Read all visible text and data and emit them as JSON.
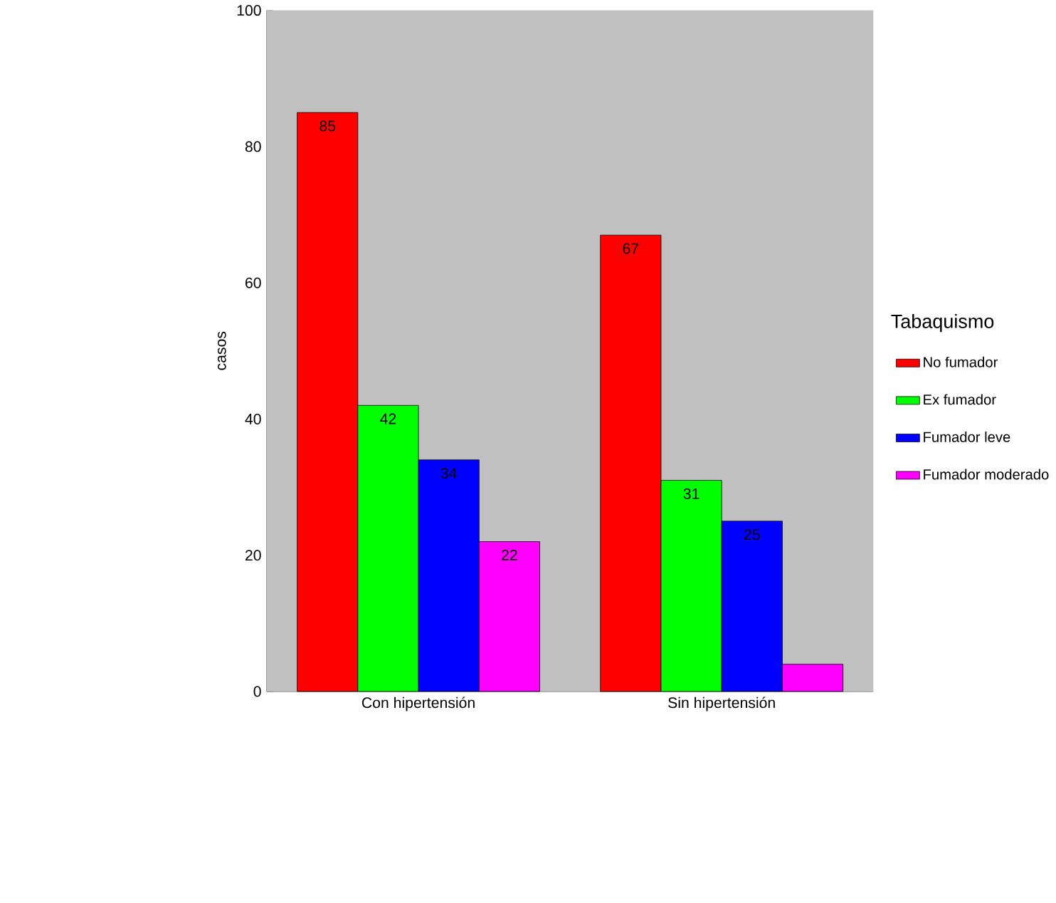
{
  "chart_data": {
    "type": "bar",
    "ylabel": "casos",
    "legend_title": "Tabaquismo",
    "categories": [
      "Con hipertensión",
      "Sin hipertensión"
    ],
    "series": [
      {
        "name": "No fumador",
        "color": "#ff0000",
        "values": [
          85,
          67
        ],
        "value_labels": [
          "85",
          "67"
        ]
      },
      {
        "name": "Ex fumador",
        "color": "#00ff00",
        "values": [
          42,
          31
        ],
        "value_labels": [
          "42",
          "31"
        ]
      },
      {
        "name": "Fumador leve",
        "color": "#0000ff",
        "values": [
          34,
          25
        ],
        "value_labels": [
          "34",
          "25"
        ]
      },
      {
        "name": "Fumador moderado",
        "color": "#ff00ff",
        "values": [
          22,
          4
        ],
        "value_labels": [
          "22",
          null
        ]
      }
    ],
    "ylim": [
      0,
      100
    ],
    "yticks": [
      0,
      20,
      40,
      60,
      80,
      100
    ],
    "grid": false,
    "legend": "right"
  }
}
